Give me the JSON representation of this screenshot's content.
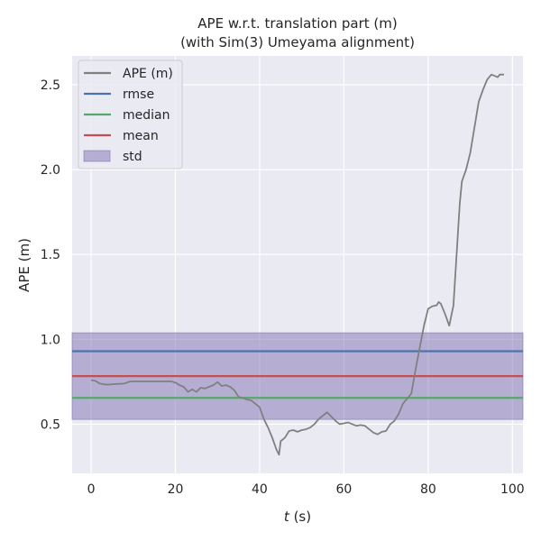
{
  "chart_data": {
    "type": "line",
    "title_line1": "APE w.r.t. translation part (m)",
    "title_line2": "(with Sim(3) Umeyama alignment)",
    "xlabel_var": "t",
    "xlabel_unit": " (s)",
    "ylabel": "APE (m)",
    "xlim": [
      -4.5,
      102.5
    ],
    "ylim": [
      0.21,
      2.67
    ],
    "xticks": [
      0,
      20,
      40,
      60,
      80,
      100
    ],
    "yticks": [
      0.5,
      1.0,
      1.5,
      2.0,
      2.5
    ],
    "ytick_labels": [
      "0.5",
      "1.0",
      "1.5",
      "2.0",
      "2.5"
    ],
    "background": "#eaeaf2",
    "grid": true,
    "legend_position": "upper-left",
    "stats": {
      "rmse": 0.93,
      "median": 0.655,
      "mean": 0.783,
      "std": 0.255
    },
    "legend": [
      {
        "label": "APE (m)",
        "color": "#808080",
        "kind": "line"
      },
      {
        "label": "rmse",
        "color": "#4c72b0",
        "kind": "line"
      },
      {
        "label": "median",
        "color": "#55a868",
        "kind": "line"
      },
      {
        "label": "mean",
        "color": "#c44e52",
        "kind": "line"
      },
      {
        "label": "std",
        "color": "#8172b2",
        "kind": "patch"
      }
    ],
    "series": [
      {
        "name": "APE (m)",
        "color": "#808080",
        "x": [
          0,
          1,
          2,
          3,
          4,
          5,
          6,
          7,
          8,
          9,
          10,
          12,
          14,
          16,
          18,
          19,
          20,
          21,
          22,
          23,
          24,
          25,
          26,
          27,
          28,
          29,
          30,
          31,
          32,
          33,
          34,
          35,
          36,
          37,
          38,
          39,
          40,
          41,
          42,
          43,
          44,
          44.6,
          45,
          46,
          47,
          48,
          49,
          50,
          51,
          52,
          53,
          54,
          55,
          56,
          57,
          58,
          59,
          60,
          61,
          62,
          63,
          64,
          65,
          66,
          67,
          68,
          69,
          70,
          71,
          72,
          73,
          74,
          75,
          76,
          77,
          78,
          79,
          80,
          81,
          82,
          82.5,
          83,
          84,
          85,
          86,
          87,
          87.5,
          88,
          89,
          90,
          91,
          92,
          93,
          94,
          95,
          96,
          96.5,
          97,
          98
        ],
        "values": [
          0.76,
          0.755,
          0.74,
          0.735,
          0.733,
          0.735,
          0.737,
          0.738,
          0.74,
          0.75,
          0.752,
          0.752,
          0.752,
          0.752,
          0.752,
          0.752,
          0.745,
          0.73,
          0.72,
          0.69,
          0.705,
          0.69,
          0.715,
          0.71,
          0.72,
          0.73,
          0.748,
          0.725,
          0.73,
          0.72,
          0.7,
          0.66,
          0.655,
          0.645,
          0.64,
          0.62,
          0.6,
          0.53,
          0.48,
          0.42,
          0.35,
          0.32,
          0.4,
          0.42,
          0.46,
          0.465,
          0.455,
          0.465,
          0.47,
          0.48,
          0.5,
          0.53,
          0.55,
          0.57,
          0.545,
          0.52,
          0.5,
          0.505,
          0.51,
          0.5,
          0.49,
          0.495,
          0.49,
          0.47,
          0.45,
          0.44,
          0.455,
          0.46,
          0.5,
          0.52,
          0.56,
          0.62,
          0.65,
          0.68,
          0.82,
          0.95,
          1.08,
          1.18,
          1.195,
          1.2,
          1.22,
          1.21,
          1.15,
          1.08,
          1.2,
          1.6,
          1.8,
          1.93,
          2.0,
          2.1,
          2.25,
          2.4,
          2.47,
          2.53,
          2.56,
          2.55,
          2.545,
          2.56,
          2.56
        ]
      }
    ]
  }
}
